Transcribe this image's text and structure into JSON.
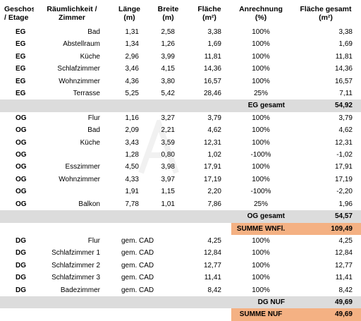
{
  "headers": {
    "geschoss": "Geschoss\n/ Etage",
    "raum": "Räumlichkeit /\nZimmer",
    "laenge": "Länge\n(m)",
    "breite": "Breite\n(m)",
    "flaeche": "Fläche\n(m²)",
    "anrechnung": "Anrechnung\n(%)",
    "flaeche_gesamt": "Fläche gesamt\n(m²)"
  },
  "eg_rows": [
    {
      "g": "EG",
      "r": "Bad",
      "l": "1,31",
      "b": "2,58",
      "f": "3,38",
      "a": "100%",
      "t": "3,38"
    },
    {
      "g": "EG",
      "r": "Abstellraum",
      "l": "1,34",
      "b": "1,26",
      "f": "1,69",
      "a": "100%",
      "t": "1,69"
    },
    {
      "g": "EG",
      "r": "Küche",
      "l": "2,96",
      "b": "3,99",
      "f": "11,81",
      "a": "100%",
      "t": "11,81"
    },
    {
      "g": "EG",
      "r": "Schlafzimmer",
      "l": "3,46",
      "b": "4,15",
      "f": "14,36",
      "a": "100%",
      "t": "14,36"
    },
    {
      "g": "EG",
      "r": "Wohnzimmer",
      "l": "4,36",
      "b": "3,80",
      "f": "16,57",
      "a": "100%",
      "t": "16,57"
    },
    {
      "g": "EG",
      "r": "Terrasse",
      "l": "5,25",
      "b": "5,42",
      "f": "28,46",
      "a": "25%",
      "t": "7,11"
    }
  ],
  "eg_total": {
    "label": "EG gesamt",
    "value": "54,92"
  },
  "og_rows": [
    {
      "g": "OG",
      "r": "Flur",
      "l": "1,16",
      "b": "3,27",
      "f": "3,79",
      "a": "100%",
      "t": "3,79"
    },
    {
      "g": "OG",
      "r": "Bad",
      "l": "2,09",
      "b": "2,21",
      "f": "4,62",
      "a": "100%",
      "t": "4,62"
    },
    {
      "g": "OG",
      "r": "Küche",
      "l": "3,43",
      "b": "3,59",
      "f": "12,31",
      "a": "100%",
      "t": "12,31"
    },
    {
      "g": "OG",
      "r": "",
      "l": "1,28",
      "b": "0,80",
      "f": "1,02",
      "a": "-100%",
      "t": "-1,02"
    },
    {
      "g": "OG",
      "r": "Esszimmer",
      "l": "4,50",
      "b": "3,98",
      "f": "17,91",
      "a": "100%",
      "t": "17,91"
    },
    {
      "g": "OG",
      "r": "Wohnzimmer",
      "l": "4,33",
      "b": "3,97",
      "f": "17,19",
      "a": "100%",
      "t": "17,19"
    },
    {
      "g": "OG",
      "r": "",
      "l": "1,91",
      "b": "1,15",
      "f": "2,20",
      "a": "-100%",
      "t": "-2,20"
    },
    {
      "g": "OG",
      "r": "Balkon",
      "l": "7,78",
      "b": "1,01",
      "f": "7,86",
      "a": "25%",
      "t": "1,96"
    }
  ],
  "og_total": {
    "label": "OG gesamt",
    "value": "54,57"
  },
  "summe_wnfl": {
    "label": "SUMME WNFl.",
    "value": "109,49"
  },
  "dg_rows": [
    {
      "g": "DG",
      "r": "Flur",
      "l": "gem. CAD",
      "f": "4,25",
      "a": "100%",
      "t": "4,25"
    },
    {
      "g": "DG",
      "r": "Schlafzimmer 1",
      "l": "gem. CAD",
      "f": "12,84",
      "a": "100%",
      "t": "12,84"
    },
    {
      "g": "DG",
      "r": "Schlafzimmer 2",
      "l": "gem. CAD",
      "f": "12,77",
      "a": "100%",
      "t": "12,77"
    },
    {
      "g": "DG",
      "r": "Schlafzimmer 3",
      "l": "gem. CAD",
      "f": "11,41",
      "a": "100%",
      "t": "11,41"
    },
    {
      "g": "DG",
      "r": "Badezimmer",
      "l": "gem. CAD",
      "f": "8,42",
      "a": "100%",
      "t": "8,42"
    }
  ],
  "dg_total": {
    "label": "DG NUF",
    "value": "49,69"
  },
  "summe_nuf": {
    "label": "SUMME NUF",
    "value": "49,69"
  },
  "colors": {
    "subtotal_bg": "#dcdcdc",
    "summe_bg": "#f4b183"
  }
}
